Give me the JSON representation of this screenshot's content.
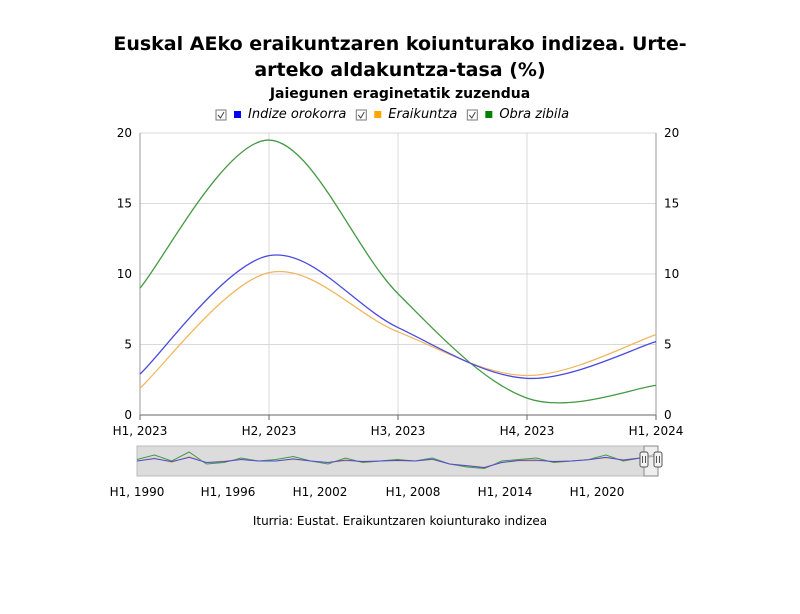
{
  "chart_data": {
    "type": "line",
    "title_line1": "Euskal AEko eraikuntzaren koiunturako indizea. Urte-",
    "title_line2": "arteko aldakuntza-tasa (%)",
    "subtitle": "Jaiegunen eraginetatik zuzendua",
    "categories": [
      "H1, 2023",
      "H2, 2023",
      "H3, 2023",
      "H4, 2023",
      "H1, 2024"
    ],
    "ylim": [
      0,
      20
    ],
    "yticks": [
      "0",
      "5",
      "10",
      "15",
      "20"
    ],
    "series": [
      {
        "name": "Indize orokorra",
        "color": "#4a4ae0",
        "legend_color": "#0000ff",
        "values": [
          2.9,
          11.3,
          6.2,
          2.6,
          5.2
        ]
      },
      {
        "name": "Eraikuntza",
        "color": "#f0b860",
        "legend_color": "#ffa500",
        "values": [
          1.9,
          10.1,
          5.9,
          2.8,
          5.7
        ]
      },
      {
        "name": "Obra zibila",
        "color": "#449944",
        "legend_color": "#008000",
        "values": [
          9.0,
          19.5,
          8.6,
          1.2,
          2.1
        ]
      }
    ],
    "grid": true,
    "legend_position": "top",
    "navigator": {
      "labels": [
        "H1, 1990",
        "H1, 1996",
        "H1, 2002",
        "H1, 2008",
        "H1, 2014",
        "H1, 2020"
      ]
    },
    "source": "Iturria: Eustat. Eraikuntzaren koiunturako indizea"
  }
}
